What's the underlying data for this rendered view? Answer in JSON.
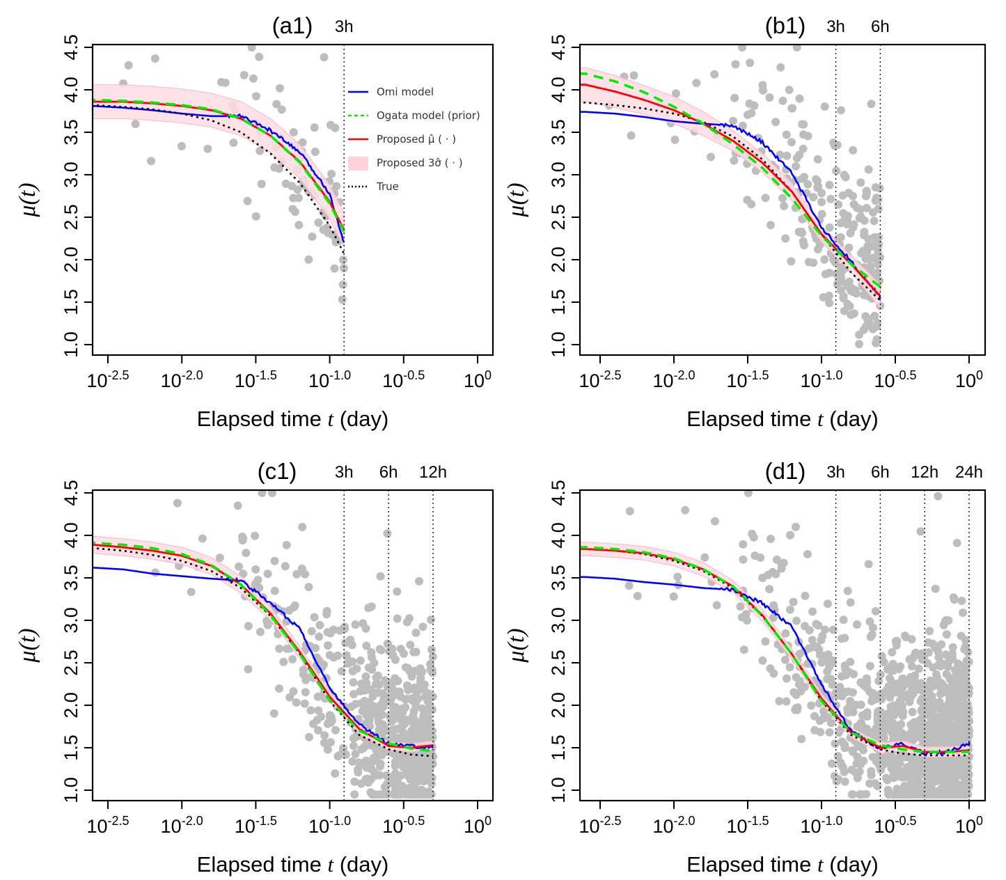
{
  "chart_data": [
    {
      "id": "a1",
      "type": "scatter",
      "title": "(a1)",
      "xlabel": "Elapsed time t (day)",
      "ylabel": "μ(t)",
      "xscale": "log10",
      "xlim_log10": [
        -2.6,
        0.1
      ],
      "ylim": [
        0.9,
        4.55
      ],
      "x_ticks_log10": [
        -2.5,
        -2.0,
        -1.5,
        -1.0,
        -0.5,
        0
      ],
      "x_tick_labels": [
        [
          "10",
          "-2.5"
        ],
        [
          "10",
          "-2.0"
        ],
        [
          "10",
          "-1.5"
        ],
        [
          "10",
          "-1.0"
        ],
        [
          "10",
          "-0.5"
        ],
        [
          "10",
          "0"
        ]
      ],
      "y_ticks": [
        1.0,
        1.5,
        2.0,
        2.5,
        3.0,
        3.5,
        4.0,
        4.5
      ],
      "y_tick_labels": [
        "1.0",
        "1.5",
        "2.0",
        "2.5",
        "3.0",
        "3.5",
        "4.0",
        "4.5"
      ],
      "markers": [
        {
          "label": "3h",
          "x_log10": -0.903
        }
      ],
      "end_log10": -0.903,
      "legend": {
        "placement": "top-right",
        "entries": [
          {
            "label": "Omi model",
            "style": "solid",
            "color": "#0000ff"
          },
          {
            "label": "Ogata model (prior)",
            "style": "dashed",
            "color": "#00ee00"
          },
          {
            "label": "Proposed μ̂ ( · )",
            "style": "solid",
            "color": "#ff0000"
          },
          {
            "label": "Proposed 3σ̂ ( · )",
            "style": "band",
            "color": "#ffd1dc"
          },
          {
            "label": "True",
            "style": "dotted",
            "color": "#000000"
          }
        ]
      },
      "curves": {
        "true": {
          "start": 3.82,
          "end_model": "omori"
        },
        "ogata": {
          "start": 3.88
        },
        "proposed": {
          "start": 3.86,
          "band_halfwidth": 0.2
        },
        "omi": {
          "start": 3.8
        }
      },
      "series_samples": {
        "x_log10": [
          -2.6,
          -2.4,
          -2.2,
          -2.0,
          -1.8,
          -1.6,
          -1.4,
          -1.2,
          -1.0,
          -0.903
        ],
        "true": [
          3.82,
          3.8,
          3.77,
          3.72,
          3.64,
          3.5,
          3.25,
          2.9,
          2.4,
          2.07
        ],
        "ogata": [
          3.88,
          3.87,
          3.85,
          3.82,
          3.77,
          3.66,
          3.46,
          3.14,
          2.66,
          2.33
        ],
        "proposed": [
          3.86,
          3.86,
          3.84,
          3.81,
          3.76,
          3.66,
          3.46,
          3.15,
          2.68,
          2.35
        ],
        "omi": [
          3.81,
          3.79,
          3.76,
          3.72,
          3.69,
          3.69,
          3.52,
          3.26,
          2.78,
          2.2
        ]
      }
    },
    {
      "id": "b1",
      "type": "scatter",
      "title": "(b1)",
      "xlabel": "Elapsed time t (day)",
      "ylabel": "μ(t)",
      "xscale": "log10",
      "xlim_log10": [
        -2.6,
        0.1
      ],
      "ylim": [
        0.9,
        4.55
      ],
      "x_ticks_log10": [
        -2.5,
        -2.0,
        -1.5,
        -1.0,
        -0.5,
        0
      ],
      "x_tick_labels": [
        [
          "10",
          "-2.5"
        ],
        [
          "10",
          "-2.0"
        ],
        [
          "10",
          "-1.5"
        ],
        [
          "10",
          "-1.0"
        ],
        [
          "10",
          "-0.5"
        ],
        [
          "10",
          "0"
        ]
      ],
      "y_ticks": [
        1.0,
        1.5,
        2.0,
        2.5,
        3.0,
        3.5,
        4.0,
        4.5
      ],
      "y_tick_labels": [
        "1.0",
        "1.5",
        "2.0",
        "2.5",
        "3.0",
        "3.5",
        "4.0",
        "4.5"
      ],
      "markers": [
        {
          "label": "3h",
          "x_log10": -0.903
        },
        {
          "label": "6h",
          "x_log10": -0.602
        }
      ],
      "end_log10": -0.602,
      "series_samples": {
        "x_log10": [
          -2.6,
          -2.4,
          -2.2,
          -2.0,
          -1.8,
          -1.6,
          -1.4,
          -1.2,
          -1.0,
          -0.8,
          -0.602
        ],
        "true": [
          3.85,
          3.82,
          3.78,
          3.72,
          3.62,
          3.45,
          3.18,
          2.8,
          2.3,
          1.85,
          1.52
        ],
        "ogata": [
          4.19,
          4.1,
          3.97,
          3.8,
          3.6,
          3.36,
          3.08,
          2.72,
          2.28,
          1.95,
          1.68
        ],
        "proposed": [
          4.06,
          3.98,
          3.88,
          3.76,
          3.6,
          3.4,
          3.14,
          2.8,
          2.3,
          1.95,
          1.57
        ],
        "omi": [
          3.74,
          3.72,
          3.68,
          3.63,
          3.6,
          3.58,
          3.38,
          3.02,
          2.38,
          1.98,
          1.56
        ],
        "band_halfwidth": [
          0.2,
          0.19,
          0.17,
          0.16,
          0.14,
          0.12,
          0.11,
          0.1,
          0.09,
          0.1,
          0.14
        ]
      }
    },
    {
      "id": "c1",
      "type": "scatter",
      "title": "(c1)",
      "xlabel": "Elapsed time t (day)",
      "ylabel": "μ(t)",
      "xscale": "log10",
      "xlim_log10": [
        -2.6,
        0.1
      ],
      "ylim": [
        0.9,
        4.55
      ],
      "x_ticks_log10": [
        -2.5,
        -2.0,
        -1.5,
        -1.0,
        -0.5,
        0
      ],
      "x_tick_labels": [
        [
          "10",
          "-2.5"
        ],
        [
          "10",
          "-2.0"
        ],
        [
          "10",
          "-1.5"
        ],
        [
          "10",
          "-1.0"
        ],
        [
          "10",
          "-0.5"
        ],
        [
          "10",
          "0"
        ]
      ],
      "y_ticks": [
        1.0,
        1.5,
        2.0,
        2.5,
        3.0,
        3.5,
        4.0,
        4.5
      ],
      "y_tick_labels": [
        "1.0",
        "1.5",
        "2.0",
        "2.5",
        "3.0",
        "3.5",
        "4.0",
        "4.5"
      ],
      "markers": [
        {
          "label": "3h",
          "x_log10": -0.903
        },
        {
          "label": "6h",
          "x_log10": -0.602
        },
        {
          "label": "12h",
          "x_log10": -0.301
        }
      ],
      "end_log10": -0.301,
      "series_samples": {
        "x_log10": [
          -2.6,
          -2.4,
          -2.2,
          -2.0,
          -1.8,
          -1.6,
          -1.4,
          -1.2,
          -1.0,
          -0.8,
          -0.6,
          -0.45,
          -0.301
        ],
        "true": [
          3.85,
          3.82,
          3.77,
          3.7,
          3.58,
          3.38,
          3.05,
          2.6,
          2.05,
          1.65,
          1.48,
          1.42,
          1.4
        ],
        "ogata": [
          3.91,
          3.89,
          3.85,
          3.78,
          3.65,
          3.42,
          3.06,
          2.6,
          2.06,
          1.7,
          1.55,
          1.49,
          1.46
        ],
        "proposed": [
          3.89,
          3.86,
          3.82,
          3.76,
          3.64,
          3.42,
          3.08,
          2.62,
          2.1,
          1.72,
          1.52,
          1.5,
          1.53
        ],
        "omi": [
          3.62,
          3.6,
          3.55,
          3.52,
          3.49,
          3.47,
          3.2,
          2.9,
          2.2,
          1.78,
          1.54,
          1.52,
          1.5
        ],
        "band_halfwidth": [
          0.1,
          0.1,
          0.1,
          0.1,
          0.1,
          0.1,
          0.08,
          0.07,
          0.06,
          0.06,
          0.05,
          0.05,
          0.05
        ]
      }
    },
    {
      "id": "d1",
      "type": "scatter",
      "title": "(d1)",
      "xlabel": "Elapsed time t (day)",
      "ylabel": "μ(t)",
      "xscale": "log10",
      "xlim_log10": [
        -2.6,
        0.1
      ],
      "ylim": [
        0.9,
        4.55
      ],
      "x_ticks_log10": [
        -2.5,
        -2.0,
        -1.5,
        -1.0,
        -0.5,
        0
      ],
      "x_tick_labels": [
        [
          "10",
          "-2.5"
        ],
        [
          "10",
          "-2.0"
        ],
        [
          "10",
          "-1.5"
        ],
        [
          "10",
          "-1.0"
        ],
        [
          "10",
          "-0.5"
        ],
        [
          "10",
          "0"
        ]
      ],
      "y_ticks": [
        1.0,
        1.5,
        2.0,
        2.5,
        3.0,
        3.5,
        4.0,
        4.5
      ],
      "y_tick_labels": [
        "1.0",
        "1.5",
        "2.0",
        "2.5",
        "3.0",
        "3.5",
        "4.0",
        "4.5"
      ],
      "markers": [
        {
          "label": "3h",
          "x_log10": -0.903
        },
        {
          "label": "6h",
          "x_log10": -0.602
        },
        {
          "label": "12h",
          "x_log10": -0.301
        },
        {
          "label": "24h",
          "x_log10": 0
        }
      ],
      "end_log10": 0,
      "series_samples": {
        "x_log10": [
          -2.6,
          -2.4,
          -2.2,
          -2.0,
          -1.8,
          -1.6,
          -1.4,
          -1.2,
          -1.0,
          -0.8,
          -0.6,
          -0.45,
          -0.3,
          -0.15,
          0
        ],
        "true": [
          3.84,
          3.82,
          3.78,
          3.7,
          3.58,
          3.38,
          3.05,
          2.6,
          2.05,
          1.65,
          1.48,
          1.43,
          1.41,
          1.41,
          1.41
        ],
        "ogata": [
          3.86,
          3.84,
          3.8,
          3.73,
          3.6,
          3.4,
          3.05,
          2.6,
          2.05,
          1.68,
          1.53,
          1.48,
          1.45,
          1.45,
          1.45
        ],
        "proposed": [
          3.84,
          3.82,
          3.79,
          3.72,
          3.6,
          3.4,
          3.06,
          2.6,
          2.08,
          1.68,
          1.5,
          1.52,
          1.45,
          1.45,
          1.47
        ],
        "omi": [
          3.51,
          3.49,
          3.45,
          3.42,
          3.38,
          3.36,
          3.2,
          2.92,
          2.25,
          1.7,
          1.49,
          1.55,
          1.43,
          1.45,
          1.55
        ],
        "band_halfwidth": [
          0.08,
          0.08,
          0.08,
          0.08,
          0.08,
          0.07,
          0.07,
          0.06,
          0.06,
          0.06,
          0.06,
          0.06,
          0.06,
          0.06,
          0.06
        ]
      }
    }
  ],
  "colors": {
    "omi": "#0000ff",
    "ogata": "#00ee00",
    "proposed": "#ff0000",
    "band": "#ffdde4",
    "band_edge": "#ffb3c1",
    "true": "#000000",
    "points": "#bdbdbd"
  }
}
